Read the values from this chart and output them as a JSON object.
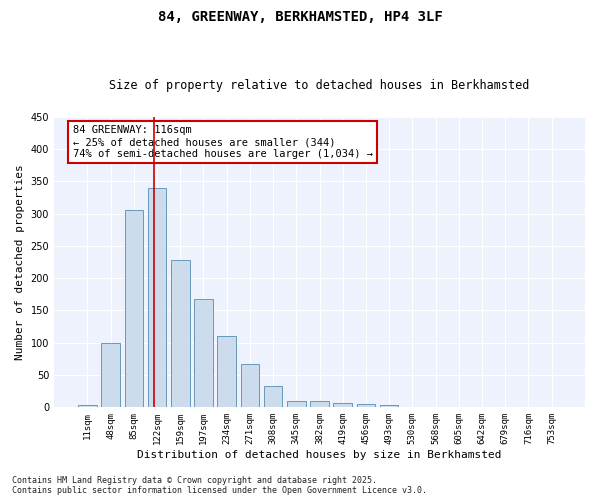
{
  "title": "84, GREENWAY, BERKHAMSTED, HP4 3LF",
  "subtitle": "Size of property relative to detached houses in Berkhamsted",
  "xlabel": "Distribution of detached houses by size in Berkhamsted",
  "ylabel": "Number of detached properties",
  "bar_color": "#ccdcec",
  "bar_edge_color": "#6699bb",
  "background_color": "#eef2fc",
  "categories": [
    "11sqm",
    "48sqm",
    "85sqm",
    "122sqm",
    "159sqm",
    "197sqm",
    "234sqm",
    "271sqm",
    "308sqm",
    "345sqm",
    "382sqm",
    "419sqm",
    "456sqm",
    "493sqm",
    "530sqm",
    "568sqm",
    "605sqm",
    "642sqm",
    "679sqm",
    "716sqm",
    "753sqm"
  ],
  "values": [
    3,
    100,
    305,
    340,
    228,
    168,
    110,
    67,
    33,
    10,
    10,
    6,
    5,
    4,
    1,
    0,
    0,
    0,
    0,
    0,
    1
  ],
  "ylim": [
    0,
    450
  ],
  "yticks": [
    0,
    50,
    100,
    150,
    200,
    250,
    300,
    350,
    400,
    450
  ],
  "vline_x": 2.85,
  "vline_color": "#cc0000",
  "annotation_text": "84 GREENWAY: 116sqm\n← 25% of detached houses are smaller (344)\n74% of semi-detached houses are larger (1,034) →",
  "annotation_box_color": "#ffffff",
  "annotation_box_edge": "#cc0000",
  "footer_text": "Contains HM Land Registry data © Crown copyright and database right 2025.\nContains public sector information licensed under the Open Government Licence v3.0."
}
